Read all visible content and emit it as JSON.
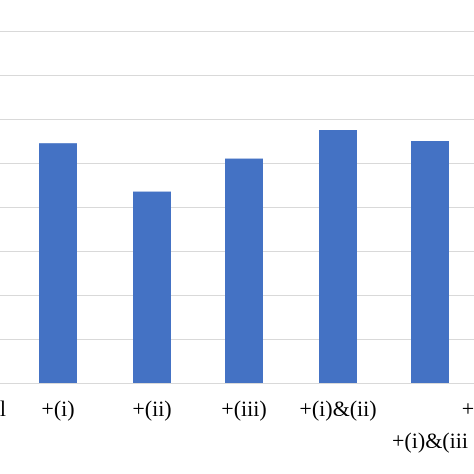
{
  "chart_data": {
    "type": "bar",
    "categories": [
      "l",
      "+(i)",
      "+(ii)",
      "+(iii)",
      "+(i)&(ii)",
      "+(i)&(iii",
      "+"
    ],
    "values": [
      null,
      5.45,
      4.35,
      5.1,
      5.75,
      5.5,
      null
    ],
    "ylim": [
      0,
      8.5
    ],
    "grid": true,
    "bar_color": "#4472c4",
    "grid_color": "#d9d9d9"
  }
}
